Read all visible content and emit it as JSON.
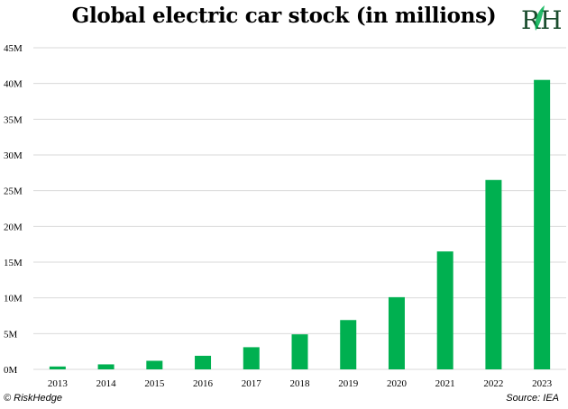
{
  "chart_data": {
    "type": "bar",
    "title": "Global electric car stock (in millions)",
    "categories": [
      "2013",
      "2014",
      "2015",
      "2016",
      "2017",
      "2018",
      "2019",
      "2020",
      "2021",
      "2022",
      "2023"
    ],
    "values": [
      0.4,
      0.7,
      1.2,
      1.9,
      3.1,
      4.9,
      6.9,
      10.1,
      16.5,
      26.5,
      40.5
    ],
    "ylim": [
      0,
      45
    ],
    "y_ticks": [
      0,
      5,
      10,
      15,
      20,
      25,
      30,
      35,
      40,
      45
    ],
    "y_tick_labels": [
      "0M",
      "5M",
      "10M",
      "15M",
      "20M",
      "25M",
      "30M",
      "35M",
      "40M",
      "45M"
    ],
    "grid": "horizontal",
    "bar_color": "#00b050",
    "grid_color": "#d9d9d9"
  },
  "branding": {
    "logo_text": "RH",
    "logo_color": "#1b4d2e",
    "copyright": "© RiskHedge",
    "source": "Source: IEA"
  }
}
